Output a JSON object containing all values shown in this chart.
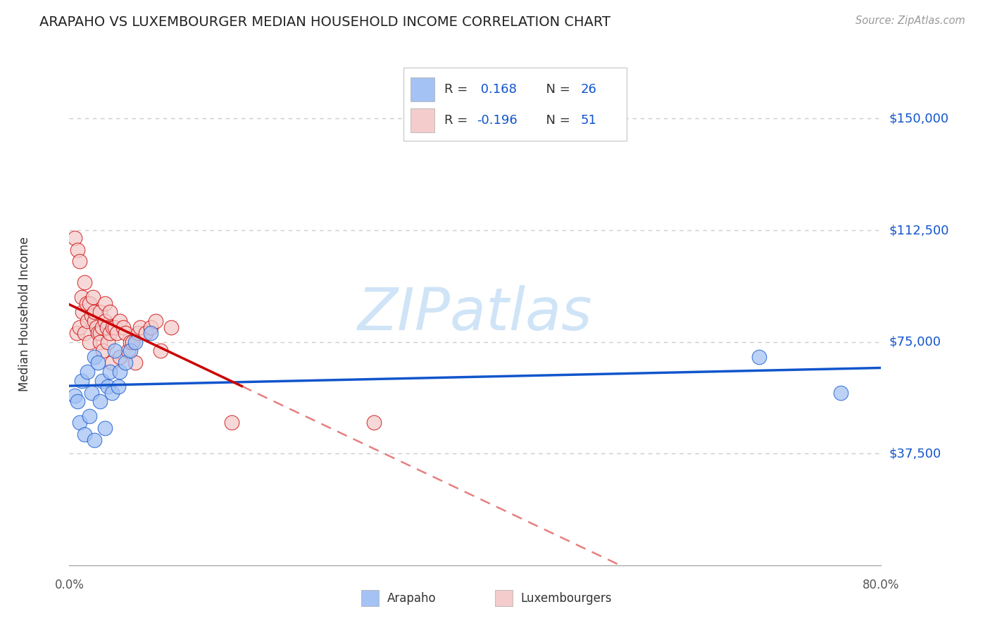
{
  "title": "ARAPAHO VS LUXEMBOURGER MEDIAN HOUSEHOLD INCOME CORRELATION CHART",
  "source": "Source: ZipAtlas.com",
  "ylabel": "Median Household Income",
  "ytick_labels": [
    "$37,500",
    "$75,000",
    "$112,500",
    "$150,000"
  ],
  "ytick_values": [
    37500,
    75000,
    112500,
    150000
  ],
  "ylim": [
    0,
    168750
  ],
  "xlim": [
    0.0,
    0.8
  ],
  "arapaho_color": "#a4c2f4",
  "luxembourger_color": "#f4cccc",
  "arapaho_line_color": "#1155cc",
  "luxembourger_line_solid_color": "#cc0000",
  "watermark_color": "#d0e4f7",
  "grid_color": "#cccccc",
  "title_color": "#222222",
  "ytick_color": "#1155cc",
  "source_color": "#999999",
  "legend_r1": "R = ",
  "legend_v1": " 0.168",
  "legend_n1": "N = ",
  "legend_nv1": "26",
  "legend_r2": "R = ",
  "legend_v2": "-0.196",
  "legend_n2": "N = ",
  "legend_nv2": "51",
  "arapaho_x": [
    0.005,
    0.008,
    0.01,
    0.012,
    0.015,
    0.018,
    0.02,
    0.022,
    0.025,
    0.025,
    0.028,
    0.03,
    0.032,
    0.035,
    0.038,
    0.04,
    0.042,
    0.045,
    0.048,
    0.05,
    0.055,
    0.06,
    0.065,
    0.08,
    0.68,
    0.76
  ],
  "arapaho_y": [
    57000,
    55000,
    48000,
    62000,
    44000,
    65000,
    50000,
    58000,
    42000,
    70000,
    68000,
    55000,
    62000,
    46000,
    60000,
    65000,
    58000,
    72000,
    60000,
    65000,
    68000,
    72000,
    75000,
    78000,
    70000,
    58000
  ],
  "luxembourger_x": [
    0.005,
    0.007,
    0.008,
    0.01,
    0.01,
    0.012,
    0.013,
    0.015,
    0.015,
    0.017,
    0.018,
    0.02,
    0.02,
    0.022,
    0.023,
    0.025,
    0.025,
    0.027,
    0.028,
    0.03,
    0.03,
    0.03,
    0.032,
    0.033,
    0.035,
    0.035,
    0.037,
    0.038,
    0.04,
    0.04,
    0.042,
    0.043,
    0.045,
    0.047,
    0.05,
    0.05,
    0.053,
    0.055,
    0.058,
    0.06,
    0.062,
    0.065,
    0.068,
    0.07,
    0.075,
    0.08,
    0.085,
    0.09,
    0.1,
    0.16,
    0.3
  ],
  "luxembourger_y": [
    110000,
    78000,
    106000,
    102000,
    80000,
    90000,
    85000,
    95000,
    78000,
    88000,
    82000,
    88000,
    75000,
    84000,
    90000,
    82000,
    85000,
    80000,
    78000,
    85000,
    78000,
    75000,
    80000,
    72000,
    88000,
    82000,
    80000,
    75000,
    78000,
    85000,
    68000,
    80000,
    80000,
    78000,
    82000,
    70000,
    80000,
    78000,
    72000,
    75000,
    75000,
    68000,
    78000,
    80000,
    78000,
    80000,
    82000,
    72000,
    80000,
    48000,
    48000
  ],
  "background_color": "#ffffff"
}
